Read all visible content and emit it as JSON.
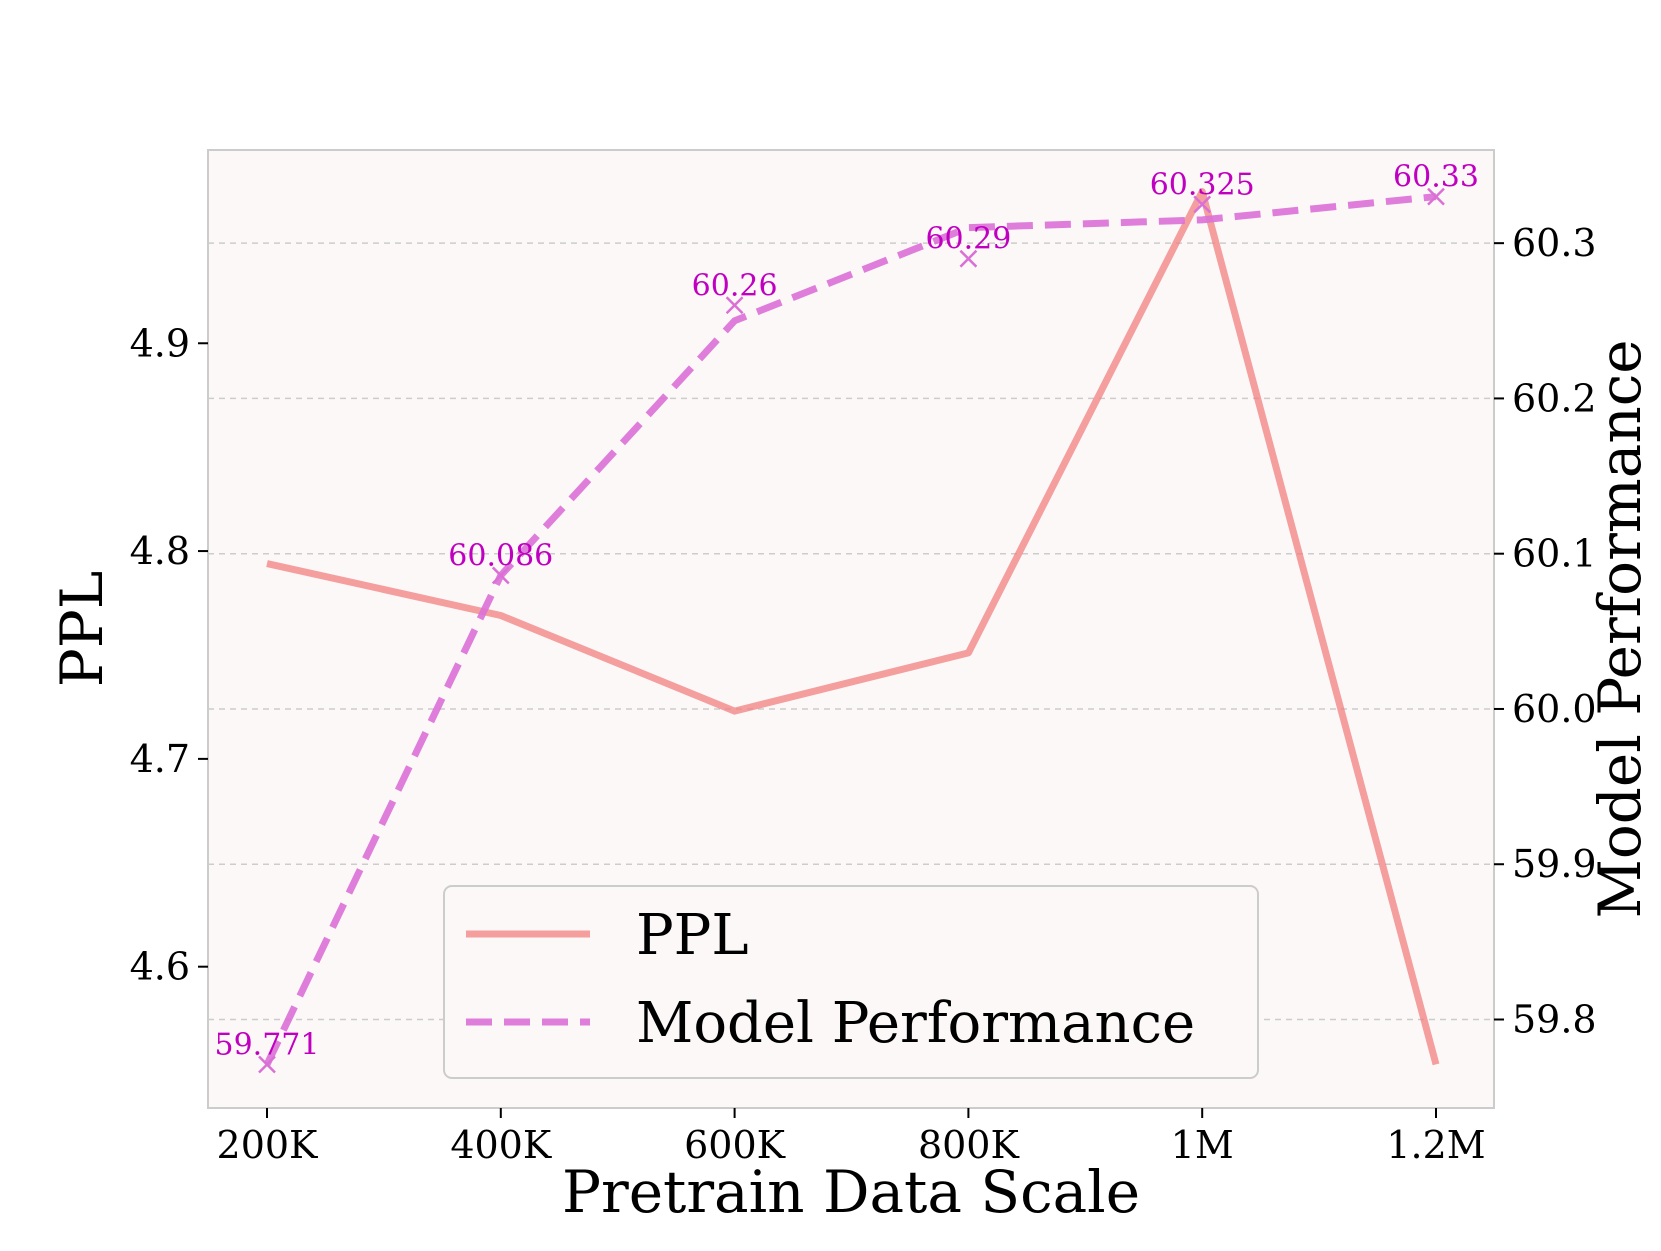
{
  "chart_data": {
    "type": "line",
    "title": "",
    "xlabel": "Pretrain Data Scale",
    "ylabel_left": "PPL",
    "ylabel_right": "Model Performance",
    "categories": [
      "200K",
      "400K",
      "600K",
      "800K",
      "1M",
      "1.2M"
    ],
    "series": [
      {
        "name": "PPL",
        "axis": "left",
        "style": "solid",
        "color": "#f08080",
        "values": [
          4.794,
          4.769,
          4.723,
          4.751,
          4.973,
          4.553
        ]
      },
      {
        "name": "Model Performance",
        "axis": "right",
        "style": "dashed",
        "marker": "x",
        "color": "#da70d6",
        "line_values": [
          59.771,
          60.086,
          60.25,
          60.31,
          60.315,
          60.33
        ],
        "point_values": [
          59.771,
          60.086,
          60.26,
          60.29,
          60.325,
          60.33
        ],
        "annotations": [
          "59.771",
          "60.086",
          "60.26",
          "60.29",
          "60.325",
          "60.33"
        ]
      }
    ],
    "y_left": {
      "range": [
        4.532,
        4.993
      ],
      "ticks": [
        4.6,
        4.7,
        4.8,
        4.9
      ],
      "tick_labels": [
        "4.6",
        "4.7",
        "4.8",
        "4.9"
      ]
    },
    "y_right": {
      "range": [
        59.743,
        60.36
      ],
      "ticks": [
        59.8,
        59.9,
        60.0,
        60.1,
        60.2,
        60.3
      ],
      "tick_labels": [
        "59.8",
        "59.9",
        "60.0",
        "60.1",
        "60.2",
        "60.3"
      ]
    },
    "grid": "horizontal-dashed-right-axis",
    "legend": {
      "position": "lower-center",
      "entries": [
        "PPL",
        "Model Performance"
      ]
    },
    "colors": {
      "plot_background": "#fdf8f8",
      "annotation_text": "#c000c0",
      "grid": "#cccccc",
      "frame": "#cccccc"
    }
  }
}
